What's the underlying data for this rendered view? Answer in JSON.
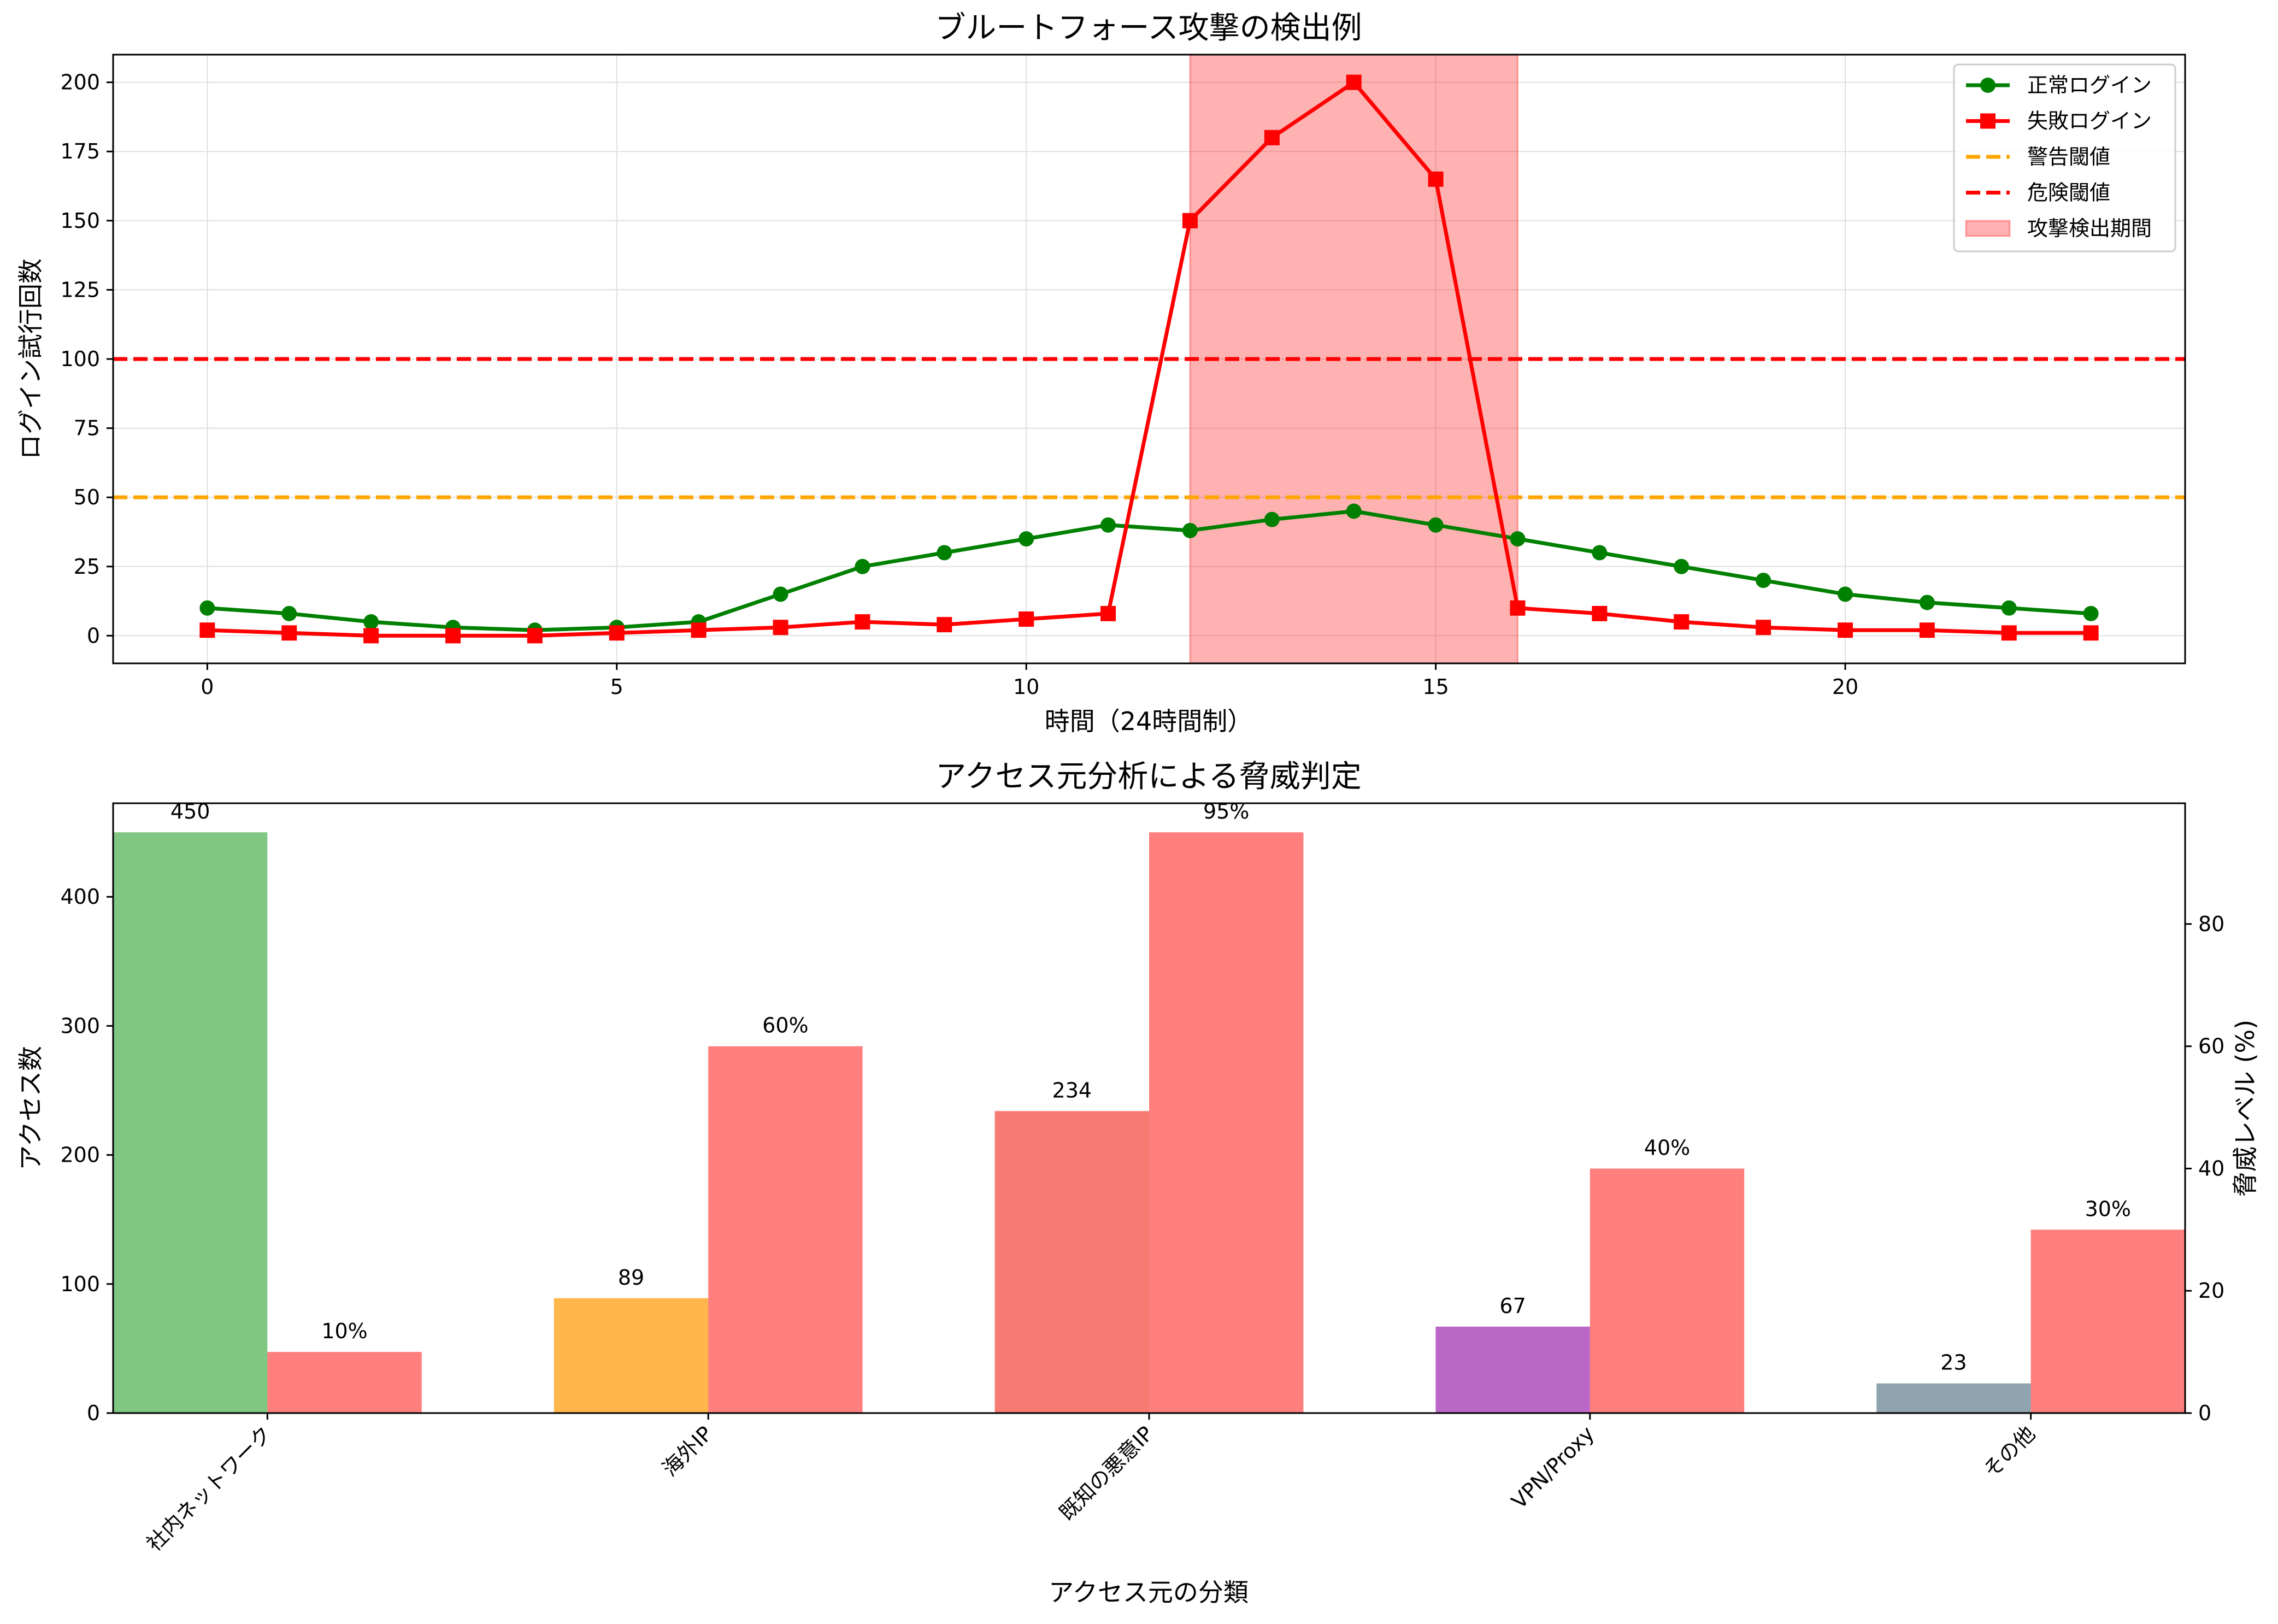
{
  "chart_data": [
    {
      "type": "line",
      "title": "ブルートフォース攻撃の検出例",
      "xlabel": "時間（24時間制）",
      "ylabel": "ログイン試行回数",
      "xlim": [
        -1.15,
        24.15
      ],
      "ylim": [
        -10,
        210
      ],
      "xticks": [
        0,
        5,
        10,
        15,
        20
      ],
      "yticks": [
        0,
        25,
        50,
        75,
        100,
        125,
        150,
        175,
        200
      ],
      "grid": true,
      "legend_position": "top-right",
      "x": [
        0,
        1,
        2,
        3,
        4,
        5,
        6,
        7,
        8,
        9,
        10,
        11,
        12,
        13,
        14,
        15,
        16,
        17,
        18,
        19,
        20,
        21,
        22,
        23
      ],
      "series": [
        {
          "name": "正常ログイン",
          "color": "#008000",
          "marker": "circle",
          "values": [
            10,
            8,
            5,
            3,
            2,
            3,
            5,
            15,
            25,
            30,
            35,
            40,
            38,
            42,
            45,
            40,
            35,
            30,
            25,
            20,
            15,
            12,
            10,
            8
          ]
        },
        {
          "name": "失敗ログイン",
          "color": "#ff0000",
          "marker": "square",
          "values": [
            2,
            1,
            0,
            0,
            0,
            1,
            2,
            3,
            5,
            4,
            6,
            8,
            150,
            180,
            200,
            165,
            10,
            8,
            5,
            3,
            2,
            2,
            1,
            1
          ]
        }
      ],
      "thresholds": [
        {
          "name": "警告閾値",
          "value": 50,
          "color": "#ffa500"
        },
        {
          "name": "危険閾値",
          "value": 100,
          "color": "#ff0000"
        }
      ],
      "highlight": {
        "name": "攻撃検出期間",
        "x_start": 12,
        "x_end": 16,
        "color": "#ff0000"
      }
    },
    {
      "type": "bar",
      "title": "アクセス元分析による脅威判定",
      "xlabel": "アクセス元の分類",
      "ylabel": "アクセス数",
      "ylabel_right": "脅威レベル (%)",
      "ylim": [
        0,
        472.5
      ],
      "ylim_right": [
        0,
        99.75
      ],
      "yticks": [
        0,
        100,
        200,
        300,
        400
      ],
      "yticks_right": [
        0,
        20,
        40,
        60,
        80
      ],
      "categories": [
        "社内ネットワーク",
        "海外IP",
        "既知の悪意IP",
        "VPN/Proxy",
        "その他"
      ],
      "series": [
        {
          "axis": "left",
          "values": [
            450,
            89,
            234,
            67,
            23
          ],
          "labels": [
            "450",
            "89",
            "234",
            "67",
            "23"
          ],
          "colors": [
            "#4caf50",
            "#ff9800",
            "#f44336",
            "#9c27b0",
            "#607d8b"
          ]
        },
        {
          "axis": "right",
          "values": [
            10,
            60,
            95,
            40,
            30
          ],
          "labels": [
            "10%",
            "60%",
            "95%",
            "40%",
            "30%"
          ],
          "color": "#ff0000"
        }
      ]
    }
  ]
}
